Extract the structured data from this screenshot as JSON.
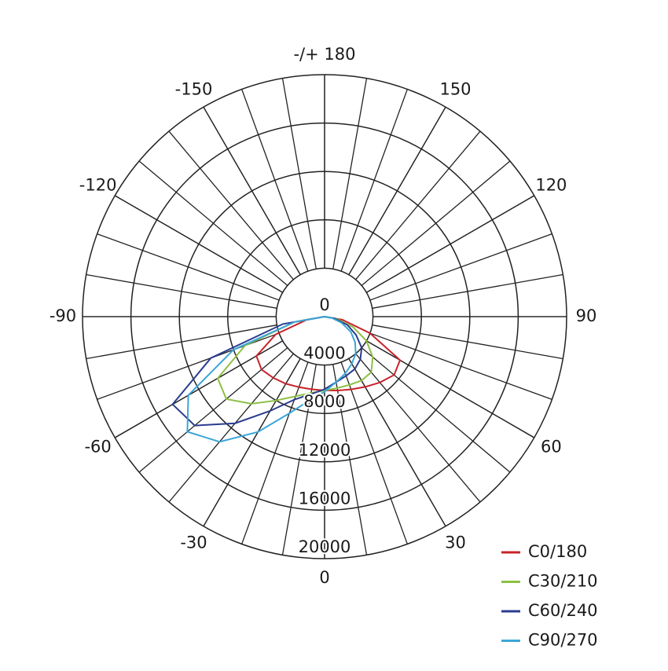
{
  "chart_data": {
    "type": "polar",
    "x": [
      -90,
      -80,
      -70,
      -60,
      -50,
      -40,
      -30,
      -20,
      -10,
      0,
      10,
      20,
      30,
      40,
      50,
      60,
      70,
      80,
      90
    ],
    "series": [
      {
        "name": "C0/180",
        "color": "#c8242b",
        "values": [
          0,
          1500,
          4300,
          6500,
          6800,
          6600,
          6400,
          6200,
          6100,
          6100,
          6200,
          6400,
          6700,
          7100,
          7500,
          7200,
          4000,
          1500,
          0
        ]
      },
      {
        "name": "C30/210",
        "color": "#8cc043",
        "values": [
          0,
          2500,
          7000,
          10200,
          10600,
          9400,
          8000,
          7000,
          6400,
          6100,
          6000,
          6000,
          6100,
          6000,
          5200,
          4000,
          2500,
          1000,
          0
        ]
      },
      {
        "name": "C60/240",
        "color": "#2a3c8f",
        "values": [
          0,
          3500,
          10000,
          14500,
          14000,
          11500,
          9000,
          7300,
          6500,
          6000,
          5500,
          5200,
          5000,
          4600,
          4000,
          3000,
          2000,
          800,
          0
        ]
      },
      {
        "name": "C90/270",
        "color": "#3aa6d8",
        "values": [
          0,
          2500,
          8000,
          13000,
          14800,
          13500,
          11000,
          8500,
          7000,
          6200,
          5500,
          5000,
          4500,
          4000,
          3300,
          2500,
          1500,
          600,
          0
        ]
      }
    ],
    "rlim": [
      0,
      20000
    ],
    "rticks": [
      0,
      4000,
      8000,
      12000,
      16000,
      20000
    ],
    "angle_ticks": [
      0,
      30,
      60,
      90,
      120,
      150,
      {
        "value": 180,
        "label": "-/+ 180"
      },
      -150,
      -120,
      -90,
      -60,
      -30
    ],
    "legend": "lower right"
  }
}
